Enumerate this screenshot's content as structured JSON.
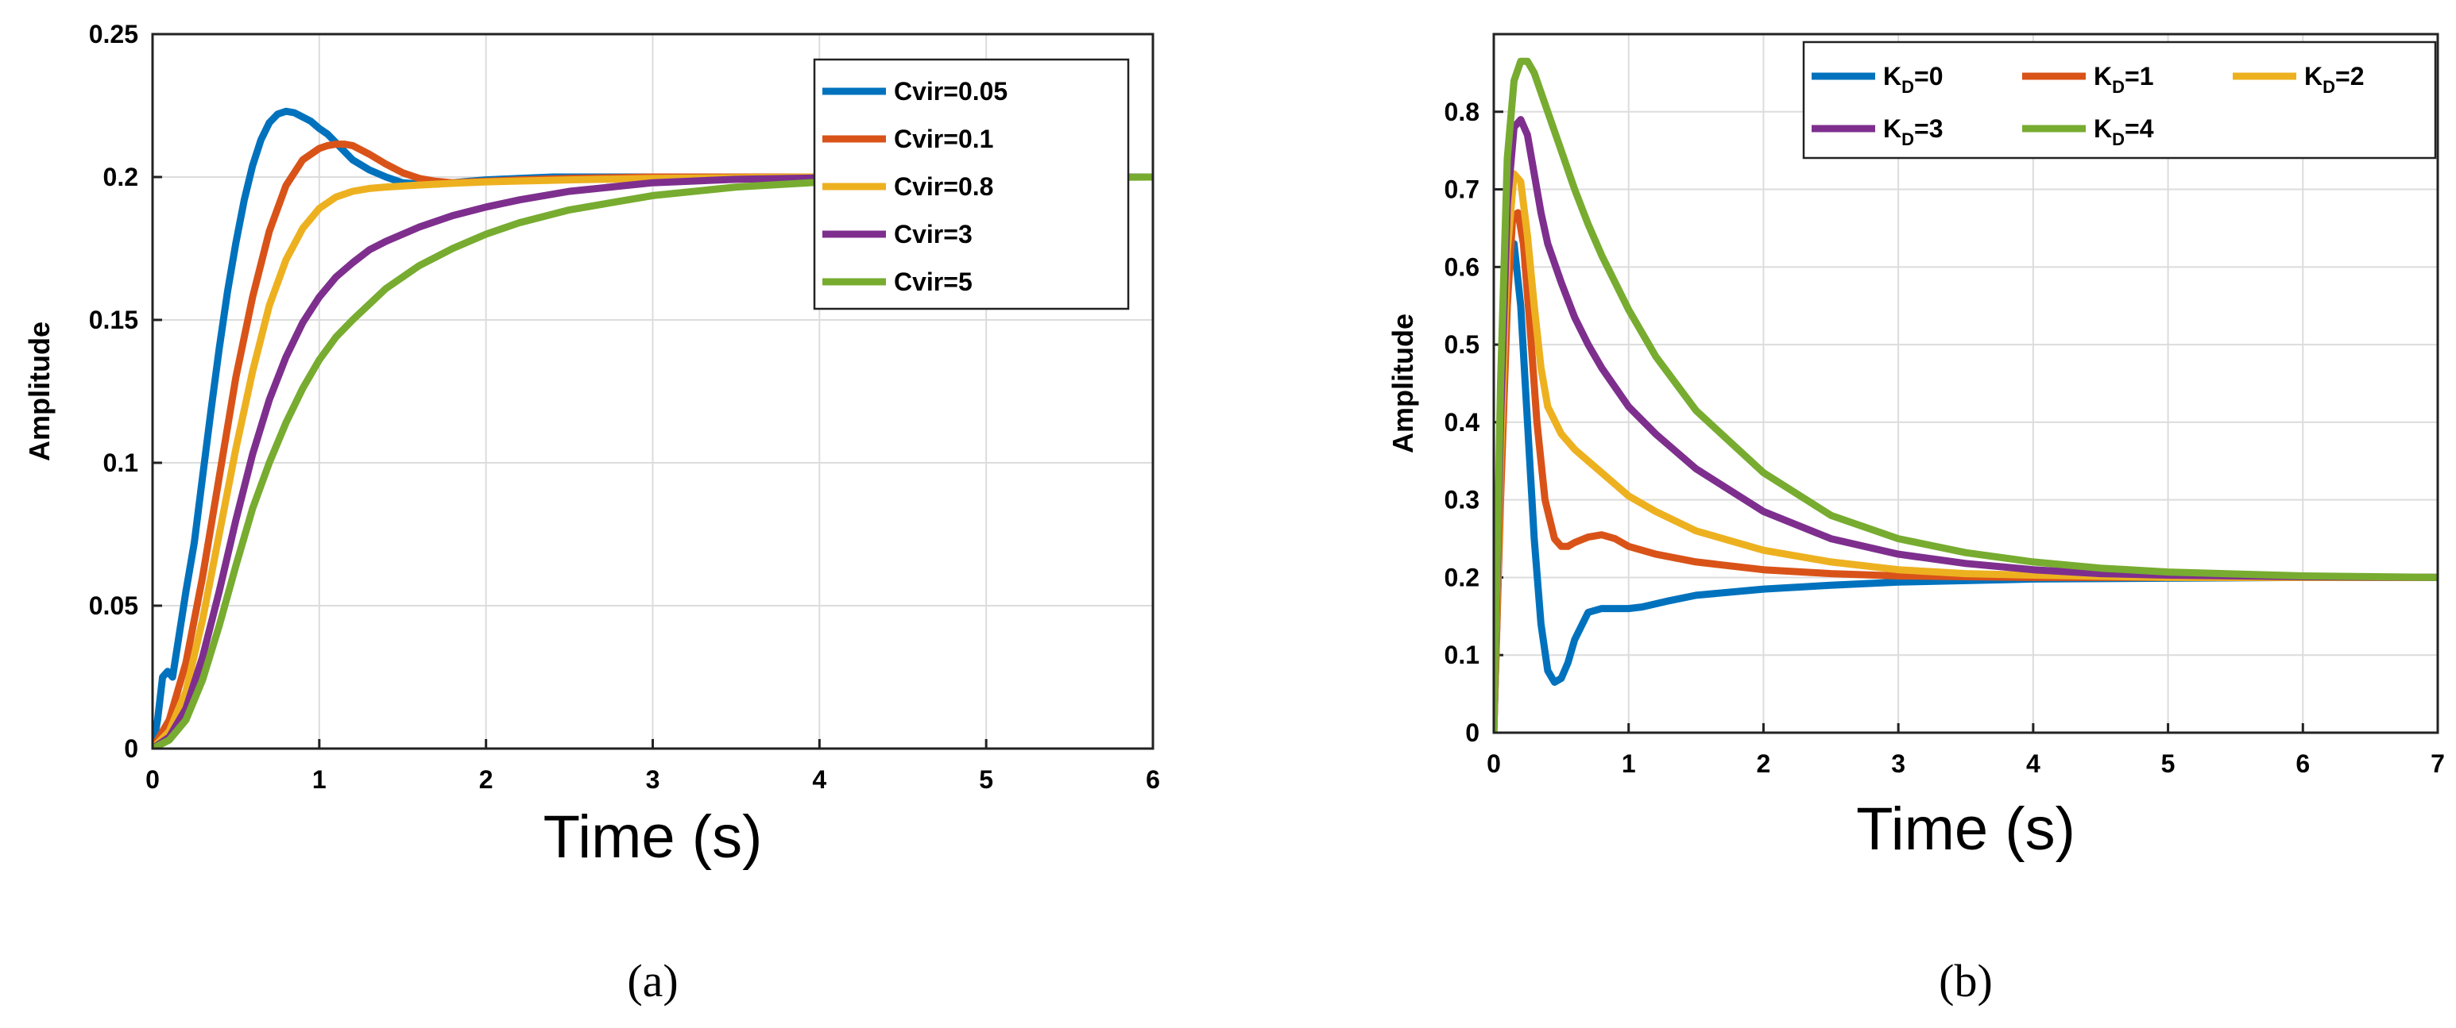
{
  "chart_data": [
    {
      "type": "line",
      "title": "",
      "xlabel": "Time (s)",
      "ylabel": "Amplitude",
      "caption": "(a)",
      "xlim": [
        0,
        6
      ],
      "ylim": [
        0,
        0.25
      ],
      "xticks": [
        0,
        1,
        2,
        3,
        4,
        5,
        6
      ],
      "xtick_labels": [
        "0",
        "1",
        "2",
        "3",
        "4",
        "5",
        "6"
      ],
      "yticks": [
        0,
        0.05,
        0.1,
        0.15,
        0.2,
        0.25
      ],
      "ytick_labels": [
        "0",
        "0.05",
        "0.1",
        "0.15",
        "0.2",
        "0.25"
      ],
      "grid": true,
      "legend_position": "top-right",
      "series": [
        {
          "name": "Cvir=0.05",
          "color": "#0072BD",
          "x": [
            0,
            0.03,
            0.06,
            0.09,
            0.12,
            0.16,
            0.2,
            0.25,
            0.3,
            0.35,
            0.4,
            0.45,
            0.5,
            0.55,
            0.6,
            0.65,
            0.7,
            0.75,
            0.8,
            0.85,
            0.9,
            0.95,
            1.0,
            1.05,
            1.1,
            1.15,
            1.2,
            1.3,
            1.4,
            1.5,
            1.6,
            1.7,
            1.8,
            1.9,
            2.0,
            2.2,
            2.4,
            2.6,
            2.8,
            3.0,
            3.5,
            4.0,
            5.0,
            6.0
          ],
          "y": [
            0,
            0.01,
            0.025,
            0.027,
            0.025,
            0.04,
            0.055,
            0.072,
            0.095,
            0.118,
            0.14,
            0.16,
            0.177,
            0.192,
            0.204,
            0.213,
            0.219,
            0.222,
            0.223,
            0.2225,
            0.221,
            0.2195,
            0.217,
            0.215,
            0.212,
            0.209,
            0.206,
            0.2025,
            0.2,
            0.198,
            0.1975,
            0.1975,
            0.198,
            0.1985,
            0.199,
            0.1995,
            0.2,
            0.2,
            0.2,
            0.2,
            0.2,
            0.2,
            0.2,
            0.2
          ]
        },
        {
          "name": "Cvir=0.1",
          "color": "#D95319",
          "x": [
            0,
            0.1,
            0.2,
            0.3,
            0.4,
            0.5,
            0.6,
            0.7,
            0.8,
            0.9,
            1.0,
            1.05,
            1.1,
            1.15,
            1.2,
            1.3,
            1.4,
            1.5,
            1.6,
            1.7,
            1.8,
            2.0,
            2.2,
            2.5,
            3.0,
            4.0,
            5.0,
            6.0
          ],
          "y": [
            0,
            0.01,
            0.03,
            0.06,
            0.095,
            0.13,
            0.158,
            0.181,
            0.197,
            0.206,
            0.21,
            0.211,
            0.2115,
            0.2115,
            0.211,
            0.208,
            0.2045,
            0.2015,
            0.1995,
            0.1985,
            0.198,
            0.1985,
            0.199,
            0.1995,
            0.2,
            0.2,
            0.2,
            0.2
          ]
        },
        {
          "name": "Cvir=0.8",
          "color": "#EDB120",
          "x": [
            0,
            0.1,
            0.2,
            0.3,
            0.4,
            0.5,
            0.6,
            0.7,
            0.8,
            0.9,
            1.0,
            1.1,
            1.2,
            1.3,
            1.4,
            1.6,
            1.8,
            2.0,
            2.5,
            3.0,
            4.0,
            5.0,
            6.0
          ],
          "y": [
            0,
            0.006,
            0.02,
            0.045,
            0.075,
            0.105,
            0.132,
            0.155,
            0.171,
            0.182,
            0.189,
            0.193,
            0.195,
            0.196,
            0.1965,
            0.1972,
            0.1978,
            0.1983,
            0.199,
            0.1995,
            0.2,
            0.2,
            0.2
          ]
        },
        {
          "name": "Cvir=3",
          "color": "#7E2F8E",
          "x": [
            0,
            0.1,
            0.2,
            0.3,
            0.4,
            0.5,
            0.6,
            0.7,
            0.8,
            0.9,
            1.0,
            1.1,
            1.2,
            1.3,
            1.4,
            1.5,
            1.6,
            1.8,
            2.0,
            2.2,
            2.5,
            3.0,
            3.5,
            4.0,
            5.0,
            6.0
          ],
          "y": [
            0,
            0.004,
            0.014,
            0.032,
            0.055,
            0.08,
            0.103,
            0.122,
            0.137,
            0.149,
            0.158,
            0.165,
            0.17,
            0.1745,
            0.1775,
            0.18,
            0.1825,
            0.1865,
            0.1895,
            0.192,
            0.195,
            0.198,
            0.1992,
            0.1997,
            0.2,
            0.2
          ]
        },
        {
          "name": "Cvir=5",
          "color": "#77AC30",
          "x": [
            0,
            0.1,
            0.2,
            0.3,
            0.4,
            0.5,
            0.6,
            0.7,
            0.8,
            0.9,
            1.0,
            1.1,
            1.2,
            1.4,
            1.6,
            1.8,
            2.0,
            2.2,
            2.5,
            3.0,
            3.5,
            4.0,
            4.5,
            5.0,
            6.0
          ],
          "y": [
            0,
            0.003,
            0.01,
            0.024,
            0.043,
            0.064,
            0.084,
            0.1,
            0.114,
            0.126,
            0.136,
            0.144,
            0.15,
            0.161,
            0.169,
            0.175,
            0.18,
            0.184,
            0.1885,
            0.1935,
            0.1965,
            0.1982,
            0.1992,
            0.1996,
            0.2
          ]
        }
      ]
    },
    {
      "type": "line",
      "title": "",
      "xlabel": "Time (s)",
      "ylabel": "Amplitude",
      "caption": "(b)",
      "xlim": [
        0,
        7
      ],
      "ylim": [
        0,
        0.9
      ],
      "xticks": [
        0,
        1,
        2,
        3,
        4,
        5,
        6,
        7
      ],
      "xtick_labels": [
        "0",
        "1",
        "2",
        "3",
        "4",
        "5",
        "6",
        "7"
      ],
      "yticks": [
        0,
        0.1,
        0.2,
        0.3,
        0.4,
        0.5,
        0.6,
        0.7,
        0.8
      ],
      "ytick_labels": [
        "0",
        "0.1",
        "0.2",
        "0.3",
        "0.4",
        "0.5",
        "0.6",
        "0.7",
        "0.8"
      ],
      "grid": true,
      "legend_position": "top-right",
      "series": [
        {
          "name": "KD=0",
          "label_main": "K",
          "label_sub": "D",
          "label_suffix": "=0",
          "color": "#0072BD",
          "x": [
            0,
            0.04,
            0.08,
            0.12,
            0.15,
            0.2,
            0.25,
            0.3,
            0.35,
            0.4,
            0.45,
            0.5,
            0.55,
            0.6,
            0.7,
            0.8,
            0.9,
            1.0,
            1.1,
            1.3,
            1.5,
            2.0,
            2.5,
            3.0,
            3.5,
            4.0,
            5.0,
            6.0,
            7.0
          ],
          "y": [
            0,
            0.25,
            0.5,
            0.62,
            0.63,
            0.55,
            0.4,
            0.25,
            0.14,
            0.08,
            0.065,
            0.07,
            0.09,
            0.12,
            0.155,
            0.16,
            0.16,
            0.16,
            0.162,
            0.17,
            0.177,
            0.185,
            0.19,
            0.194,
            0.196,
            0.198,
            0.199,
            0.2,
            0.2
          ]
        },
        {
          "name": "KD=1",
          "label_main": "K",
          "label_sub": "D",
          "label_suffix": "=1",
          "color": "#D95319",
          "x": [
            0,
            0.05,
            0.1,
            0.14,
            0.18,
            0.22,
            0.27,
            0.32,
            0.38,
            0.45,
            0.5,
            0.55,
            0.6,
            0.7,
            0.8,
            0.9,
            1.0,
            1.2,
            1.5,
            2.0,
            2.5,
            3.0,
            4.0,
            5.0,
            6.0,
            7.0
          ],
          "y": [
            0,
            0.3,
            0.55,
            0.665,
            0.67,
            0.63,
            0.52,
            0.4,
            0.3,
            0.25,
            0.24,
            0.24,
            0.245,
            0.252,
            0.255,
            0.25,
            0.24,
            0.23,
            0.22,
            0.21,
            0.205,
            0.202,
            0.2,
            0.2,
            0.2,
            0.2
          ]
        },
        {
          "name": "KD=2",
          "label_main": "K",
          "label_sub": "D",
          "label_suffix": "=2",
          "color": "#EDB120",
          "x": [
            0,
            0.05,
            0.1,
            0.15,
            0.2,
            0.25,
            0.3,
            0.35,
            0.4,
            0.5,
            0.6,
            0.7,
            0.8,
            1.0,
            1.2,
            1.5,
            2.0,
            2.5,
            3.0,
            3.5,
            4.0,
            5.0,
            6.0,
            7.0
          ],
          "y": [
            0,
            0.35,
            0.62,
            0.72,
            0.71,
            0.64,
            0.55,
            0.47,
            0.42,
            0.385,
            0.365,
            0.35,
            0.335,
            0.305,
            0.285,
            0.26,
            0.235,
            0.22,
            0.21,
            0.205,
            0.203,
            0.2,
            0.2,
            0.2
          ]
        },
        {
          "name": "KD=3",
          "label_main": "K",
          "label_sub": "D",
          "label_suffix": "=3",
          "color": "#7E2F8E",
          "x": [
            0,
            0.05,
            0.1,
            0.15,
            0.2,
            0.25,
            0.3,
            0.35,
            0.4,
            0.5,
            0.6,
            0.7,
            0.8,
            1.0,
            1.2,
            1.5,
            2.0,
            2.5,
            3.0,
            3.5,
            4.0,
            4.5,
            5.0,
            6.0,
            7.0
          ],
          "y": [
            0,
            0.4,
            0.68,
            0.78,
            0.79,
            0.77,
            0.72,
            0.67,
            0.63,
            0.58,
            0.535,
            0.5,
            0.47,
            0.42,
            0.385,
            0.34,
            0.285,
            0.25,
            0.23,
            0.218,
            0.21,
            0.205,
            0.203,
            0.201,
            0.2
          ]
        },
        {
          "name": "KD=4",
          "label_main": "K",
          "label_sub": "D",
          "label_suffix": "=4",
          "color": "#77AC30",
          "x": [
            0,
            0.05,
            0.1,
            0.15,
            0.2,
            0.25,
            0.3,
            0.4,
            0.5,
            0.6,
            0.7,
            0.8,
            1.0,
            1.2,
            1.5,
            2.0,
            2.5,
            3.0,
            3.5,
            4.0,
            4.5,
            5.0,
            6.0,
            7.0
          ],
          "y": [
            0,
            0.45,
            0.74,
            0.84,
            0.865,
            0.865,
            0.85,
            0.8,
            0.75,
            0.7,
            0.655,
            0.615,
            0.545,
            0.485,
            0.415,
            0.335,
            0.28,
            0.25,
            0.232,
            0.22,
            0.212,
            0.207,
            0.202,
            0.2
          ]
        }
      ]
    }
  ]
}
